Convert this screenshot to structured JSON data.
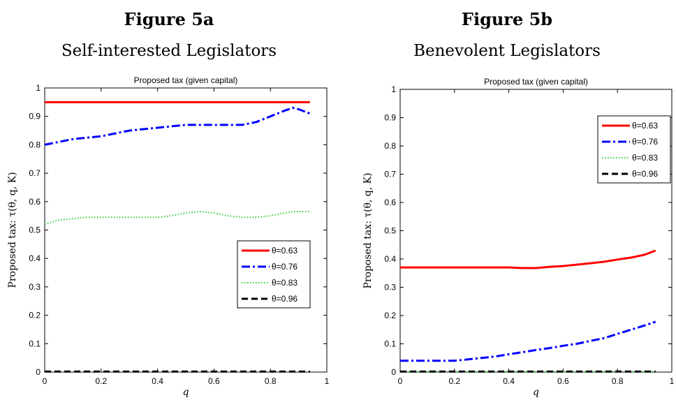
{
  "figures": [
    {
      "title": "Figure 5a",
      "subtitle": "Self-interested Legislators"
    },
    {
      "title": "Figure 5b",
      "subtitle": "Benevolent Legislators"
    }
  ],
  "chart_data": [
    {
      "type": "line",
      "title": "Proposed tax (given capital)",
      "xlabel": "q",
      "ylabel": "Proposed tax: τ(θ, q, K)",
      "xlim": [
        0,
        1
      ],
      "ylim": [
        0,
        1
      ],
      "xticks": [
        "0",
        "0.2",
        "0.4",
        "0.6",
        "0.8",
        "1"
      ],
      "yticks": [
        "0",
        "0.1",
        "0.2",
        "0.3",
        "0.4",
        "0.5",
        "0.6",
        "0.7",
        "0.8",
        "0.9",
        "1"
      ],
      "grid": false,
      "legend_position": "center-right",
      "x": [
        0,
        0.05,
        0.1,
        0.15,
        0.2,
        0.25,
        0.3,
        0.35,
        0.4,
        0.45,
        0.5,
        0.55,
        0.6,
        0.65,
        0.7,
        0.75,
        0.8,
        0.85,
        0.88,
        0.9,
        0.94
      ],
      "series": [
        {
          "name": "θ=0.63",
          "color": "#ff0000",
          "style": "solid",
          "values": [
            0.95,
            0.95,
            0.95,
            0.95,
            0.95,
            0.95,
            0.95,
            0.95,
            0.95,
            0.95,
            0.95,
            0.95,
            0.95,
            0.95,
            0.95,
            0.95,
            0.95,
            0.95,
            0.95,
            0.95,
            0.95
          ]
        },
        {
          "name": "θ=0.76",
          "color": "#0000ff",
          "style": "dashdot",
          "values": [
            0.8,
            0.81,
            0.82,
            0.825,
            0.83,
            0.84,
            0.85,
            0.855,
            0.86,
            0.865,
            0.87,
            0.87,
            0.87,
            0.87,
            0.87,
            0.88,
            0.9,
            0.92,
            0.93,
            0.925,
            0.91
          ]
        },
        {
          "name": "θ=0.83",
          "color": "#33cc33",
          "style": "dotted",
          "values": [
            0.52,
            0.535,
            0.54,
            0.545,
            0.545,
            0.545,
            0.545,
            0.545,
            0.545,
            0.55,
            0.56,
            0.565,
            0.56,
            0.55,
            0.545,
            0.545,
            0.55,
            0.56,
            0.565,
            0.565,
            0.565
          ]
        },
        {
          "name": "θ=0.96",
          "color": "#000000",
          "style": "dashed",
          "values": [
            0.002,
            0.002,
            0.002,
            0.002,
            0.002,
            0.002,
            0.002,
            0.002,
            0.002,
            0.002,
            0.002,
            0.002,
            0.002,
            0.002,
            0.002,
            0.002,
            0.002,
            0.002,
            0.002,
            0.002,
            0.002
          ]
        }
      ]
    },
    {
      "type": "line",
      "title": "Proposed tax (given capital)",
      "xlabel": "q",
      "ylabel": "Proposed tax: τ(θ, q, K)",
      "xlim": [
        0,
        1
      ],
      "ylim": [
        0,
        1
      ],
      "xticks": [
        "0",
        "0.2",
        "0.4",
        "0.6",
        "0.8",
        "1"
      ],
      "yticks": [
        "0",
        "0.1",
        "0.2",
        "0.3",
        "0.4",
        "0.5",
        "0.6",
        "0.7",
        "0.8",
        "0.9",
        "1"
      ],
      "grid": false,
      "legend_position": "top-right",
      "x": [
        0,
        0.05,
        0.1,
        0.15,
        0.2,
        0.25,
        0.3,
        0.35,
        0.4,
        0.45,
        0.5,
        0.55,
        0.6,
        0.65,
        0.7,
        0.75,
        0.8,
        0.85,
        0.9,
        0.94
      ],
      "series": [
        {
          "name": "θ=0.63",
          "color": "#ff0000",
          "style": "solid",
          "values": [
            0.37,
            0.37,
            0.37,
            0.37,
            0.37,
            0.37,
            0.37,
            0.37,
            0.37,
            0.368,
            0.368,
            0.372,
            0.375,
            0.38,
            0.385,
            0.39,
            0.398,
            0.405,
            0.415,
            0.43
          ]
        },
        {
          "name": "θ=0.76",
          "color": "#0000ff",
          "style": "dashdot",
          "values": [
            0.04,
            0.04,
            0.04,
            0.04,
            0.04,
            0.045,
            0.05,
            0.055,
            0.063,
            0.07,
            0.078,
            0.085,
            0.093,
            0.1,
            0.11,
            0.12,
            0.135,
            0.15,
            0.165,
            0.178
          ]
        },
        {
          "name": "θ=0.83",
          "color": "#33cc33",
          "style": "dotted",
          "values": [
            0.002,
            0.002,
            0.002,
            0.002,
            0.002,
            0.002,
            0.002,
            0.002,
            0.002,
            0.002,
            0.002,
            0.002,
            0.002,
            0.002,
            0.002,
            0.002,
            0.002,
            0.002,
            0.002,
            0.002
          ]
        },
        {
          "name": "θ=0.96",
          "color": "#000000",
          "style": "dashed",
          "values": [
            0.002,
            0.002,
            0.002,
            0.002,
            0.002,
            0.002,
            0.002,
            0.002,
            0.002,
            0.002,
            0.002,
            0.002,
            0.002,
            0.002,
            0.002,
            0.002,
            0.002,
            0.002,
            0.002,
            0.002
          ]
        }
      ]
    }
  ]
}
